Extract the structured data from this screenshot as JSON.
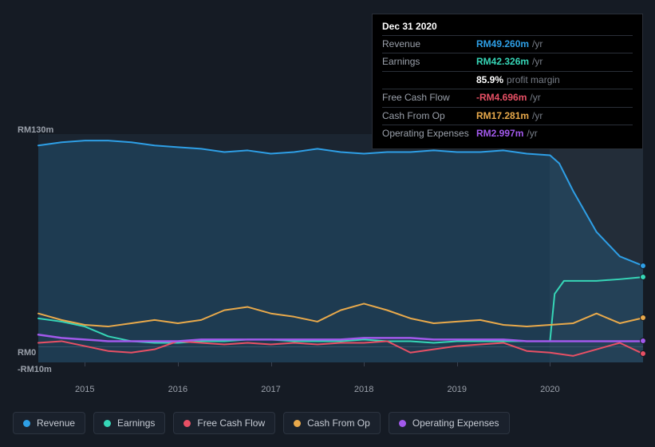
{
  "tooltip": {
    "date": "Dec 31 2020",
    "rows": [
      {
        "label": "Revenue",
        "value": "RM49.260m",
        "color": "#2e9fe6",
        "unit": "/yr"
      },
      {
        "label": "Earnings",
        "value": "RM42.326m",
        "color": "#36d6b7",
        "unit": "/yr"
      },
      {
        "label": "",
        "value": "85.9%",
        "color": "#ffffff",
        "unit": "profit margin"
      },
      {
        "label": "Free Cash Flow",
        "value": "-RM4.696m",
        "color": "#e85065",
        "unit": "/yr"
      },
      {
        "label": "Cash From Op",
        "value": "RM17.281m",
        "color": "#e8a94b",
        "unit": "/yr"
      },
      {
        "label": "Operating Expenses",
        "value": "RM2.997m",
        "color": "#a259ec",
        "unit": "/yr"
      }
    ]
  },
  "chart": {
    "type": "line-area",
    "background_color": "#1b2531",
    "page_background": "#151b24",
    "future_shade": "rgba(255,255,255,0.04)",
    "grid_color": "#3a4250",
    "label_color": "#9aa0aa",
    "label_fontsize": 11,
    "x": {
      "min": 2014.5,
      "max": 2021.0,
      "future_start": 2020.0,
      "ticks": [
        2015,
        2016,
        2017,
        2018,
        2019,
        2020
      ]
    },
    "y": {
      "min": -10,
      "max": 130,
      "ticks": [
        {
          "v": 130,
          "label": "RM130m"
        },
        {
          "v": 0,
          "label": "RM0"
        },
        {
          "v": -10,
          "label": "-RM10m"
        }
      ]
    },
    "series": [
      {
        "name": "Revenue",
        "color": "#2e9fe6",
        "fill": true,
        "fill_opacity": 0.18,
        "width": 2,
        "points": [
          [
            2014.5,
            123
          ],
          [
            2014.75,
            125
          ],
          [
            2015.0,
            126
          ],
          [
            2015.25,
            126
          ],
          [
            2015.5,
            125
          ],
          [
            2015.75,
            123
          ],
          [
            2016.0,
            122
          ],
          [
            2016.25,
            121
          ],
          [
            2016.5,
            119
          ],
          [
            2016.75,
            120
          ],
          [
            2017.0,
            118
          ],
          [
            2017.25,
            119
          ],
          [
            2017.5,
            121
          ],
          [
            2017.75,
            119
          ],
          [
            2018.0,
            118
          ],
          [
            2018.25,
            119
          ],
          [
            2018.5,
            119
          ],
          [
            2018.75,
            120
          ],
          [
            2019.0,
            119
          ],
          [
            2019.25,
            119
          ],
          [
            2019.5,
            120
          ],
          [
            2019.75,
            118
          ],
          [
            2020.0,
            117
          ],
          [
            2020.1,
            112
          ],
          [
            2020.25,
            95
          ],
          [
            2020.5,
            70
          ],
          [
            2020.75,
            55
          ],
          [
            2021.0,
            49.26
          ]
        ]
      },
      {
        "name": "Earnings",
        "color": "#36d6b7",
        "fill": false,
        "width": 2,
        "points": [
          [
            2014.5,
            17
          ],
          [
            2014.75,
            15
          ],
          [
            2015.0,
            12
          ],
          [
            2015.25,
            6
          ],
          [
            2015.5,
            3
          ],
          [
            2015.75,
            2
          ],
          [
            2016.0,
            2
          ],
          [
            2016.25,
            3
          ],
          [
            2016.5,
            3
          ],
          [
            2016.75,
            4
          ],
          [
            2017.0,
            4
          ],
          [
            2017.25,
            3
          ],
          [
            2017.5,
            3
          ],
          [
            2017.75,
            3
          ],
          [
            2018.0,
            4
          ],
          [
            2018.25,
            3
          ],
          [
            2018.5,
            3
          ],
          [
            2018.75,
            2
          ],
          [
            2019.0,
            3
          ],
          [
            2019.25,
            3
          ],
          [
            2019.5,
            3
          ],
          [
            2019.75,
            3
          ],
          [
            2020.0,
            3
          ],
          [
            2020.05,
            32
          ],
          [
            2020.15,
            40
          ],
          [
            2020.5,
            40
          ],
          [
            2020.75,
            41
          ],
          [
            2021.0,
            42.3
          ]
        ]
      },
      {
        "name": "Free Cash Flow",
        "color": "#e85065",
        "fill": false,
        "width": 2,
        "points": [
          [
            2014.5,
            2
          ],
          [
            2014.75,
            3
          ],
          [
            2015.0,
            0
          ],
          [
            2015.25,
            -3
          ],
          [
            2015.5,
            -4
          ],
          [
            2015.75,
            -2
          ],
          [
            2016.0,
            3
          ],
          [
            2016.25,
            2
          ],
          [
            2016.5,
            1
          ],
          [
            2016.75,
            2
          ],
          [
            2017.0,
            1
          ],
          [
            2017.25,
            2
          ],
          [
            2017.5,
            1
          ],
          [
            2017.75,
            2
          ],
          [
            2018.0,
            2
          ],
          [
            2018.25,
            3
          ],
          [
            2018.5,
            -4
          ],
          [
            2018.75,
            -2
          ],
          [
            2019.0,
            0
          ],
          [
            2019.25,
            1
          ],
          [
            2019.5,
            2
          ],
          [
            2019.75,
            -3
          ],
          [
            2020.0,
            -4
          ],
          [
            2020.25,
            -6
          ],
          [
            2020.5,
            -2
          ],
          [
            2020.75,
            2
          ],
          [
            2021.0,
            -4.7
          ]
        ]
      },
      {
        "name": "Cash From Op",
        "color": "#e8a94b",
        "fill": false,
        "width": 2,
        "points": [
          [
            2014.5,
            20
          ],
          [
            2014.75,
            16
          ],
          [
            2015.0,
            13
          ],
          [
            2015.25,
            12
          ],
          [
            2015.5,
            14
          ],
          [
            2015.75,
            16
          ],
          [
            2016.0,
            14
          ],
          [
            2016.25,
            16
          ],
          [
            2016.5,
            22
          ],
          [
            2016.75,
            24
          ],
          [
            2017.0,
            20
          ],
          [
            2017.25,
            18
          ],
          [
            2017.5,
            15
          ],
          [
            2017.75,
            22
          ],
          [
            2018.0,
            26
          ],
          [
            2018.25,
            22
          ],
          [
            2018.5,
            17
          ],
          [
            2018.75,
            14
          ],
          [
            2019.0,
            15
          ],
          [
            2019.25,
            16
          ],
          [
            2019.5,
            13
          ],
          [
            2019.75,
            12
          ],
          [
            2020.0,
            13
          ],
          [
            2020.25,
            14
          ],
          [
            2020.5,
            20
          ],
          [
            2020.75,
            14
          ],
          [
            2021.0,
            17.3
          ]
        ]
      },
      {
        "name": "Operating Expenses",
        "color": "#a259ec",
        "fill": false,
        "width": 2.5,
        "points": [
          [
            2014.5,
            7
          ],
          [
            2014.75,
            5
          ],
          [
            2015.0,
            4
          ],
          [
            2015.25,
            3
          ],
          [
            2015.5,
            3
          ],
          [
            2015.75,
            3
          ],
          [
            2016.0,
            3
          ],
          [
            2016.25,
            4
          ],
          [
            2016.5,
            4
          ],
          [
            2016.75,
            4
          ],
          [
            2017.0,
            4
          ],
          [
            2017.25,
            4
          ],
          [
            2017.5,
            4
          ],
          [
            2017.75,
            4
          ],
          [
            2018.0,
            5
          ],
          [
            2018.25,
            5
          ],
          [
            2018.5,
            5
          ],
          [
            2018.75,
            4
          ],
          [
            2019.0,
            4
          ],
          [
            2019.25,
            4
          ],
          [
            2019.5,
            4
          ],
          [
            2019.75,
            3
          ],
          [
            2020.0,
            3
          ],
          [
            2020.25,
            3
          ],
          [
            2020.5,
            3
          ],
          [
            2020.75,
            3
          ],
          [
            2021.0,
            3.0
          ]
        ]
      }
    ]
  },
  "legend": [
    {
      "label": "Revenue",
      "color": "#2e9fe6"
    },
    {
      "label": "Earnings",
      "color": "#36d6b7"
    },
    {
      "label": "Free Cash Flow",
      "color": "#e85065"
    },
    {
      "label": "Cash From Op",
      "color": "#e8a94b"
    },
    {
      "label": "Operating Expenses",
      "color": "#a259ec"
    }
  ]
}
